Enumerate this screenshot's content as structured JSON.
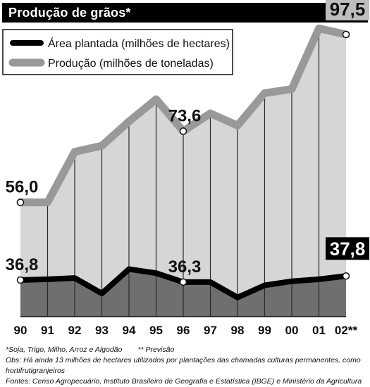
{
  "header": {
    "title": "Produção de grãos*"
  },
  "chart_data": {
    "type": "area",
    "title": "Produção de grãos*",
    "categories": [
      "90",
      "91",
      "92",
      "93",
      "94",
      "95",
      "96",
      "97",
      "98",
      "99",
      "00",
      "01",
      "02**"
    ],
    "series": [
      {
        "name": "Área plantada (milhões de hectares)",
        "color": "#000000",
        "values": [
          36.8,
          37.0,
          37.3,
          33.5,
          39.5,
          38.5,
          36.3,
          36.3,
          32.5,
          35.5,
          36.5,
          37.0,
          37.8
        ]
      },
      {
        "name": "Produção (milhões de toneladas)",
        "color": "#999999",
        "values": [
          56.0,
          56.0,
          68.5,
          70.0,
          76.0,
          81.5,
          73.6,
          78.0,
          75.0,
          83.0,
          84.0,
          99.0,
          97.5
        ]
      }
    ],
    "annotations": [
      {
        "series": 1,
        "index": 0,
        "text": "56,0"
      },
      {
        "series": 1,
        "index": 6,
        "text": "73,6"
      },
      {
        "series": 1,
        "index": 12,
        "text": "97,5"
      },
      {
        "series": 0,
        "index": 0,
        "text": "36,8"
      },
      {
        "series": 0,
        "index": 6,
        "text": "36,3"
      },
      {
        "series": 0,
        "index": 12,
        "text": "37,8"
      }
    ],
    "legend_position": "top-left",
    "colors": {
      "area_fill": "#d6d6d6",
      "lower_fill": "#6f6f6f",
      "production_line": "#999999",
      "area_line": "#000000",
      "highlight_box": "#bdbdbd"
    }
  },
  "notes": {
    "footnote_1": "*Soja, Trigo, Milho, Arroz e Algodão",
    "footnote_2": "** Previsão",
    "obs": "Obs: Há ainda 13 milhões de hectares utilizados por plantações das chamadas culturas permanentes, como hortifrutigranjeiros",
    "sources": "Fontes: Censo Agropecuário, Instituto Brasileiro de Geografia e Estatística (IBGE) e Ministério da Agricultura"
  }
}
